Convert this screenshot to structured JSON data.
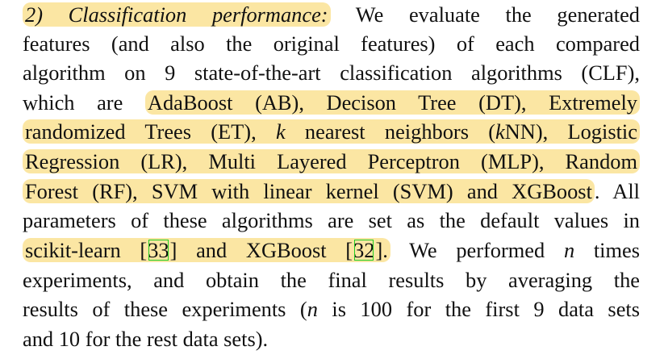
{
  "paragraph": {
    "heading_number": "2)",
    "heading_title": "Classification performance:",
    "line1_rest": "We evaluate the generated",
    "line2": "features (and also the original features) of each compared",
    "line3": "algorithm on 9 state-of-the-art classification algorithms (CLF),",
    "line4_a": "which are",
    "line4_hl": "AdaBoost (AB), Decison Tree (DT), Extremely",
    "line5_hl_a": "randomized Trees (ET),",
    "line5_k": "k",
    "line5_hl_b": "nearest neighbors (",
    "line5_k2": "k",
    "line5_hl_c": "NN), Logistic",
    "line6_hl": "Regression (LR), Multi Layered Perceptron (MLP), Random",
    "line7_hl": "Forest (RF), SVM with linear kernel (SVM) and XGBoost",
    "line7_rest": ". All",
    "line8": "parameters of these algorithms are set as the default values in",
    "line9_hl_a": "scikit-learn [",
    "line9_cite1": "33",
    "line9_hl_b": "] and XGBoost [",
    "line9_cite2": "32",
    "line9_hl_c": "].",
    "line9_rest_a": "We performed",
    "line9_n": "n",
    "line9_rest_b": "times",
    "line10": "experiments, and obtain the final results by averaging the",
    "line11_a": "results of these experiments (",
    "line11_n": "n",
    "line11_b": "is 100 for the first 9 data sets",
    "line12": "and 10 for the rest data sets)."
  },
  "colors": {
    "highlight": "#fbe6a3",
    "citation_box": "#22cc22",
    "text": "#111111"
  }
}
